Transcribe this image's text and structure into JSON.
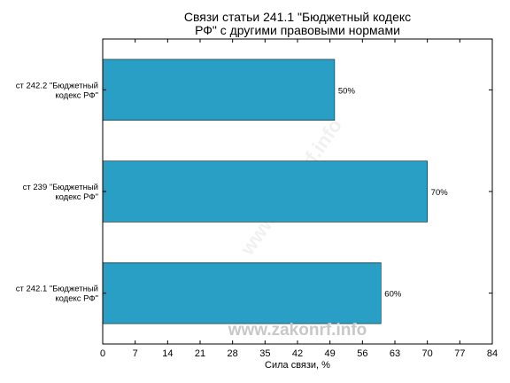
{
  "chart_data": {
    "type": "bar",
    "orientation": "horizontal",
    "title_lines": [
      "Связи статьи 241.1 \"Бюджетный кодекс",
      "РФ\" с другими правовыми нормами"
    ],
    "xlabel": "Сила связи, %",
    "ylabel": "",
    "xlim": [
      0,
      84
    ],
    "xticks": [
      0,
      7,
      14,
      21,
      28,
      35,
      42,
      49,
      56,
      63,
      70,
      77,
      84
    ],
    "categories": [
      [
        "ст 242.2 \"Бюджетный",
        "кодекс РФ\""
      ],
      [
        "ст 239 \"Бюджетный",
        "кодекс РФ\""
      ],
      [
        "ст 242.1 \"Бюджетный",
        "кодекс РФ\""
      ]
    ],
    "values": [
      50,
      70,
      60
    ],
    "value_labels": [
      "50%",
      "70%",
      "60%"
    ],
    "bar_color": "#2a9fc6",
    "grid": false
  },
  "watermark": "www.zakonrf.info"
}
